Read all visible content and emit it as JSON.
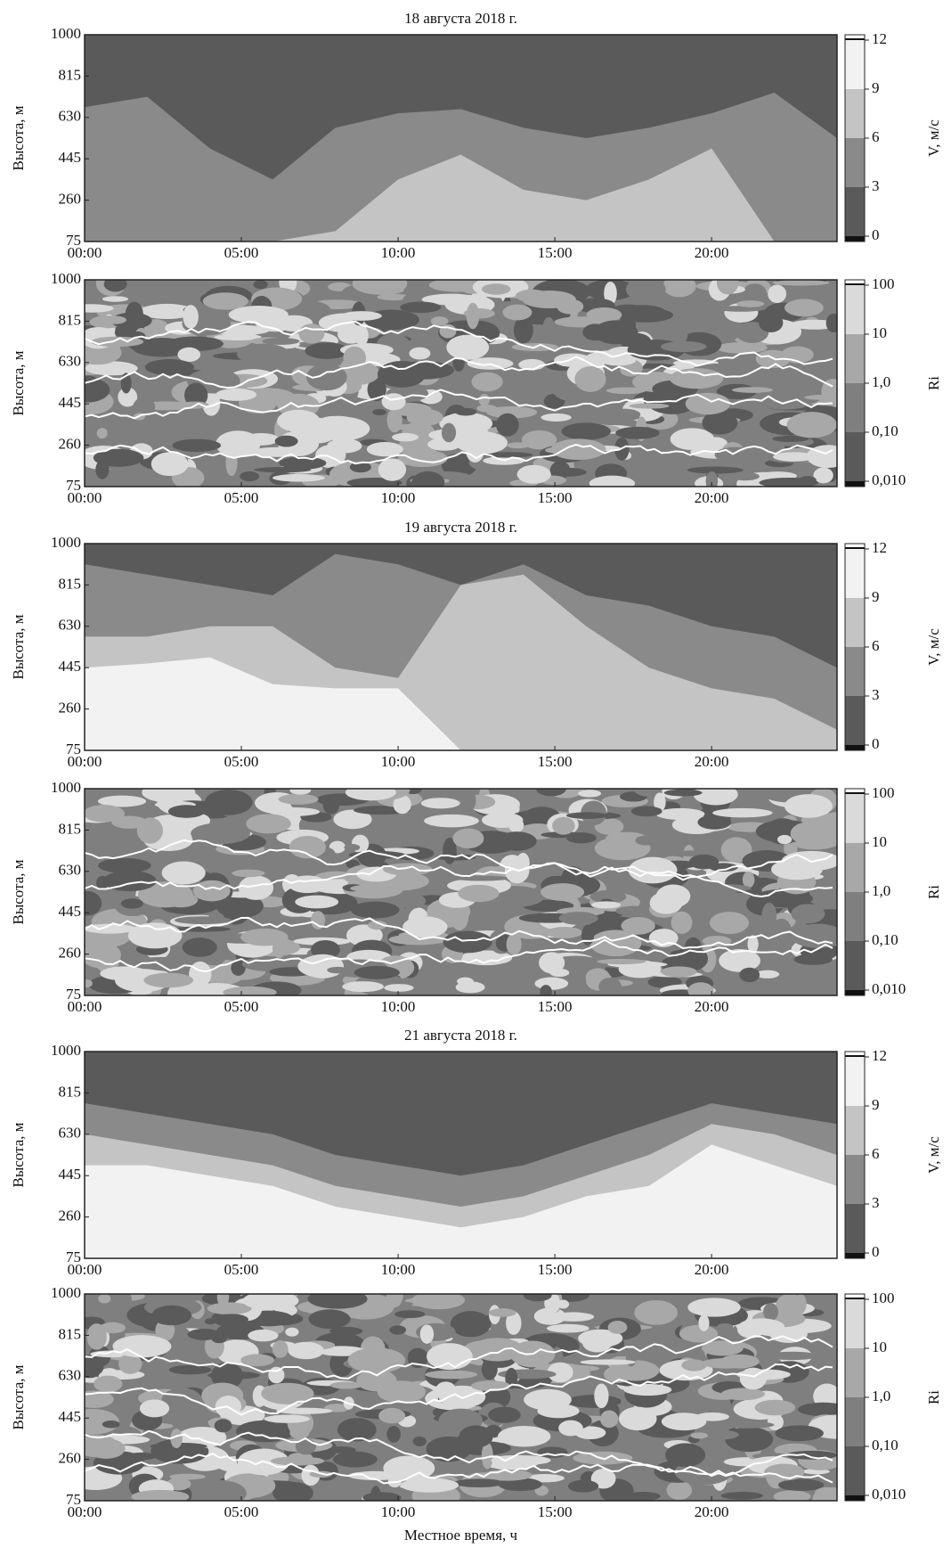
{
  "chart_data": [
    {
      "type": "contour",
      "title": "18 августа 2018 г.",
      "ylabel": "Высота, м",
      "xlim": [
        0,
        24
      ],
      "xticks": [
        {
          "value": 0,
          "label": "00:00"
        },
        {
          "value": 5,
          "label": "05:00"
        },
        {
          "value": 10,
          "label": "10:00"
        },
        {
          "value": 15,
          "label": "15:00"
        },
        {
          "value": 20,
          "label": "20:00"
        }
      ],
      "ylim": [
        75,
        1000
      ],
      "yticks": [
        75,
        260,
        445,
        630,
        815,
        1000
      ],
      "colorbar": {
        "label": "V, м/с",
        "ticks": [
          0,
          3,
          6,
          9,
          12
        ],
        "colors": [
          "#111111",
          "#5a5a5a",
          "#8a8a8a",
          "#c4c4c4",
          "#f2f2f2",
          "#ffffff"
        ]
      }
    },
    {
      "type": "contour",
      "ylabel": "Высота, м",
      "xlim": [
        0,
        24
      ],
      "xticks": [
        {
          "value": 0,
          "label": "00:00"
        },
        {
          "value": 5,
          "label": "05:00"
        },
        {
          "value": 10,
          "label": "10:00"
        },
        {
          "value": 15,
          "label": "15:00"
        },
        {
          "value": 20,
          "label": "20:00"
        }
      ],
      "ylim": [
        75,
        1000
      ],
      "yticks": [
        75,
        260,
        445,
        630,
        815,
        1000
      ],
      "colorbar": {
        "label": "Ri",
        "log": true,
        "ticks": [
          {
            "value": 0.01,
            "label": "0,010"
          },
          {
            "value": 0.1,
            "label": "0,10"
          },
          {
            "value": 1,
            "label": "1,0"
          },
          10,
          100
        ],
        "colors": [
          "#111111",
          "#5a5a5a",
          "#7f7f7f",
          "#a8a8a8",
          "#dadada",
          "#ffffff"
        ]
      }
    },
    {
      "type": "contour",
      "title": "19 августа 2018 г.",
      "ylabel": "Высота, м",
      "xlim": [
        0,
        24
      ],
      "xticks": [
        {
          "value": 0,
          "label": "00:00"
        },
        {
          "value": 5,
          "label": "05:00"
        },
        {
          "value": 10,
          "label": "10:00"
        },
        {
          "value": 15,
          "label": "15:00"
        },
        {
          "value": 20,
          "label": "20:00"
        }
      ],
      "ylim": [
        75,
        1000
      ],
      "yticks": [
        75,
        260,
        445,
        630,
        815,
        1000
      ],
      "colorbar": {
        "label": "V, м/с",
        "ticks": [
          0,
          3,
          6,
          9,
          12
        ],
        "colors": [
          "#111111",
          "#5a5a5a",
          "#8a8a8a",
          "#c4c4c4",
          "#f2f2f2",
          "#ffffff"
        ]
      }
    },
    {
      "type": "contour",
      "ylabel": "Высота, м",
      "xlim": [
        0,
        24
      ],
      "xticks": [
        {
          "value": 0,
          "label": "00:00"
        },
        {
          "value": 5,
          "label": "05:00"
        },
        {
          "value": 10,
          "label": "10:00"
        },
        {
          "value": 15,
          "label": "15:00"
        },
        {
          "value": 20,
          "label": "20:00"
        }
      ],
      "ylim": [
        75,
        1000
      ],
      "yticks": [
        75,
        260,
        445,
        630,
        815,
        1000
      ],
      "colorbar": {
        "label": "Ri",
        "log": true,
        "ticks": [
          {
            "value": 0.01,
            "label": "0,010"
          },
          {
            "value": 0.1,
            "label": "0,10"
          },
          {
            "value": 1,
            "label": "1,0"
          },
          10,
          100
        ],
        "colors": [
          "#111111",
          "#5a5a5a",
          "#7f7f7f",
          "#a8a8a8",
          "#dadada",
          "#ffffff"
        ]
      }
    },
    {
      "type": "contour",
      "title": "21 августа 2018 г.",
      "ylabel": "Высота, м",
      "xlim": [
        0,
        24
      ],
      "xticks": [
        {
          "value": 0,
          "label": "00:00"
        },
        {
          "value": 5,
          "label": "05:00"
        },
        {
          "value": 10,
          "label": "10:00"
        },
        {
          "value": 15,
          "label": "15:00"
        },
        {
          "value": 20,
          "label": "20:00"
        }
      ],
      "ylim": [
        75,
        1000
      ],
      "yticks": [
        75,
        260,
        445,
        630,
        815,
        1000
      ],
      "colorbar": {
        "label": "V, м/с",
        "ticks": [
          0,
          3,
          6,
          9,
          12
        ],
        "colors": [
          "#111111",
          "#5a5a5a",
          "#8a8a8a",
          "#c4c4c4",
          "#f2f2f2",
          "#ffffff"
        ]
      }
    },
    {
      "type": "contour",
      "ylabel": "Высота, м",
      "xlabel": "Местное время, ч",
      "xlim": [
        0,
        24
      ],
      "xticks": [
        {
          "value": 0,
          "label": "00:00"
        },
        {
          "value": 5,
          "label": "05:00"
        },
        {
          "value": 10,
          "label": "10:00"
        },
        {
          "value": 15,
          "label": "15:00"
        },
        {
          "value": 20,
          "label": "20:00"
        }
      ],
      "ylim": [
        75,
        1000
      ],
      "yticks": [
        75,
        260,
        445,
        630,
        815,
        1000
      ],
      "colorbar": {
        "label": "Ri",
        "log": true,
        "ticks": [
          {
            "value": 0.01,
            "label": "0,010"
          },
          {
            "value": 0.1,
            "label": "0,10"
          },
          {
            "value": 1,
            "label": "1,0"
          },
          10,
          100
        ],
        "colors": [
          "#111111",
          "#5a5a5a",
          "#7f7f7f",
          "#a8a8a8",
          "#dadada",
          "#ffffff"
        ]
      }
    }
  ]
}
